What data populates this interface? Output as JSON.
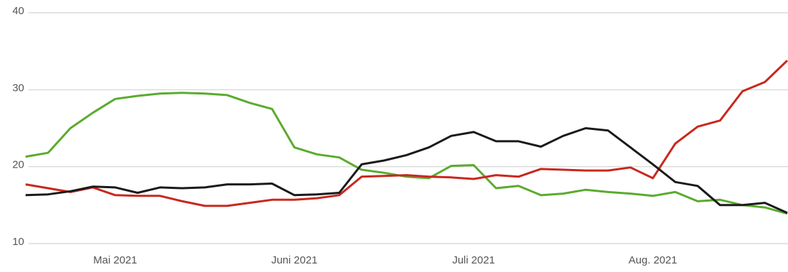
{
  "chart_data": {
    "type": "line",
    "categories": [
      null,
      null,
      null,
      null,
      "Mai 2021",
      null,
      null,
      null,
      null,
      null,
      null,
      null,
      "Juni 2021",
      null,
      null,
      null,
      null,
      null,
      null,
      null,
      "Juli 2021",
      null,
      null,
      null,
      null,
      null,
      null,
      null,
      "Aug. 2021",
      null,
      null,
      null,
      null,
      null,
      null
    ],
    "series": [
      {
        "color": "#5aab2e",
        "values": [
          21.3,
          21.8,
          25,
          27,
          28.8,
          29.2,
          29.5,
          29.6,
          29.5,
          29.3,
          28.3,
          27.5,
          22.5,
          21.6,
          21.2,
          19.6,
          19.2,
          18.7,
          18.5,
          20.1,
          20.2,
          17.2,
          17.5,
          16.3,
          16.5,
          17,
          16.7,
          16.5,
          16.2,
          16.7,
          15.5,
          15.7,
          15,
          14.7,
          13.9
        ]
      },
      {
        "color": "#c8281e",
        "values": [
          17.7,
          17.2,
          16.7,
          17.3,
          16.3,
          16.2,
          16.2,
          15.5,
          14.9,
          14.9,
          15.3,
          15.7,
          15.7,
          15.9,
          16.3,
          18.7,
          18.8,
          18.9,
          18.7,
          18.6,
          18.4,
          18.9,
          18.7,
          19.7,
          19.6,
          19.5,
          19.5,
          19.9,
          18.5,
          23,
          25.2,
          26,
          29.8,
          31,
          33.8
        ]
      },
      {
        "color": "#1a1a1a",
        "values": [
          16.3,
          16.4,
          16.8,
          17.4,
          17.3,
          16.6,
          17.3,
          17.2,
          17.3,
          17.7,
          17.7,
          17.8,
          16.3,
          16.4,
          16.6,
          20.3,
          20.8,
          21.5,
          22.5,
          24,
          24.5,
          23.3,
          23.3,
          22.6,
          24,
          25,
          24.7,
          22.5,
          20.3,
          18,
          17.5,
          15,
          15,
          15.3,
          14
        ]
      }
    ],
    "ylim": [
      10,
      40
    ],
    "yticks": [
      10,
      20,
      30,
      40
    ],
    "grid": true
  }
}
